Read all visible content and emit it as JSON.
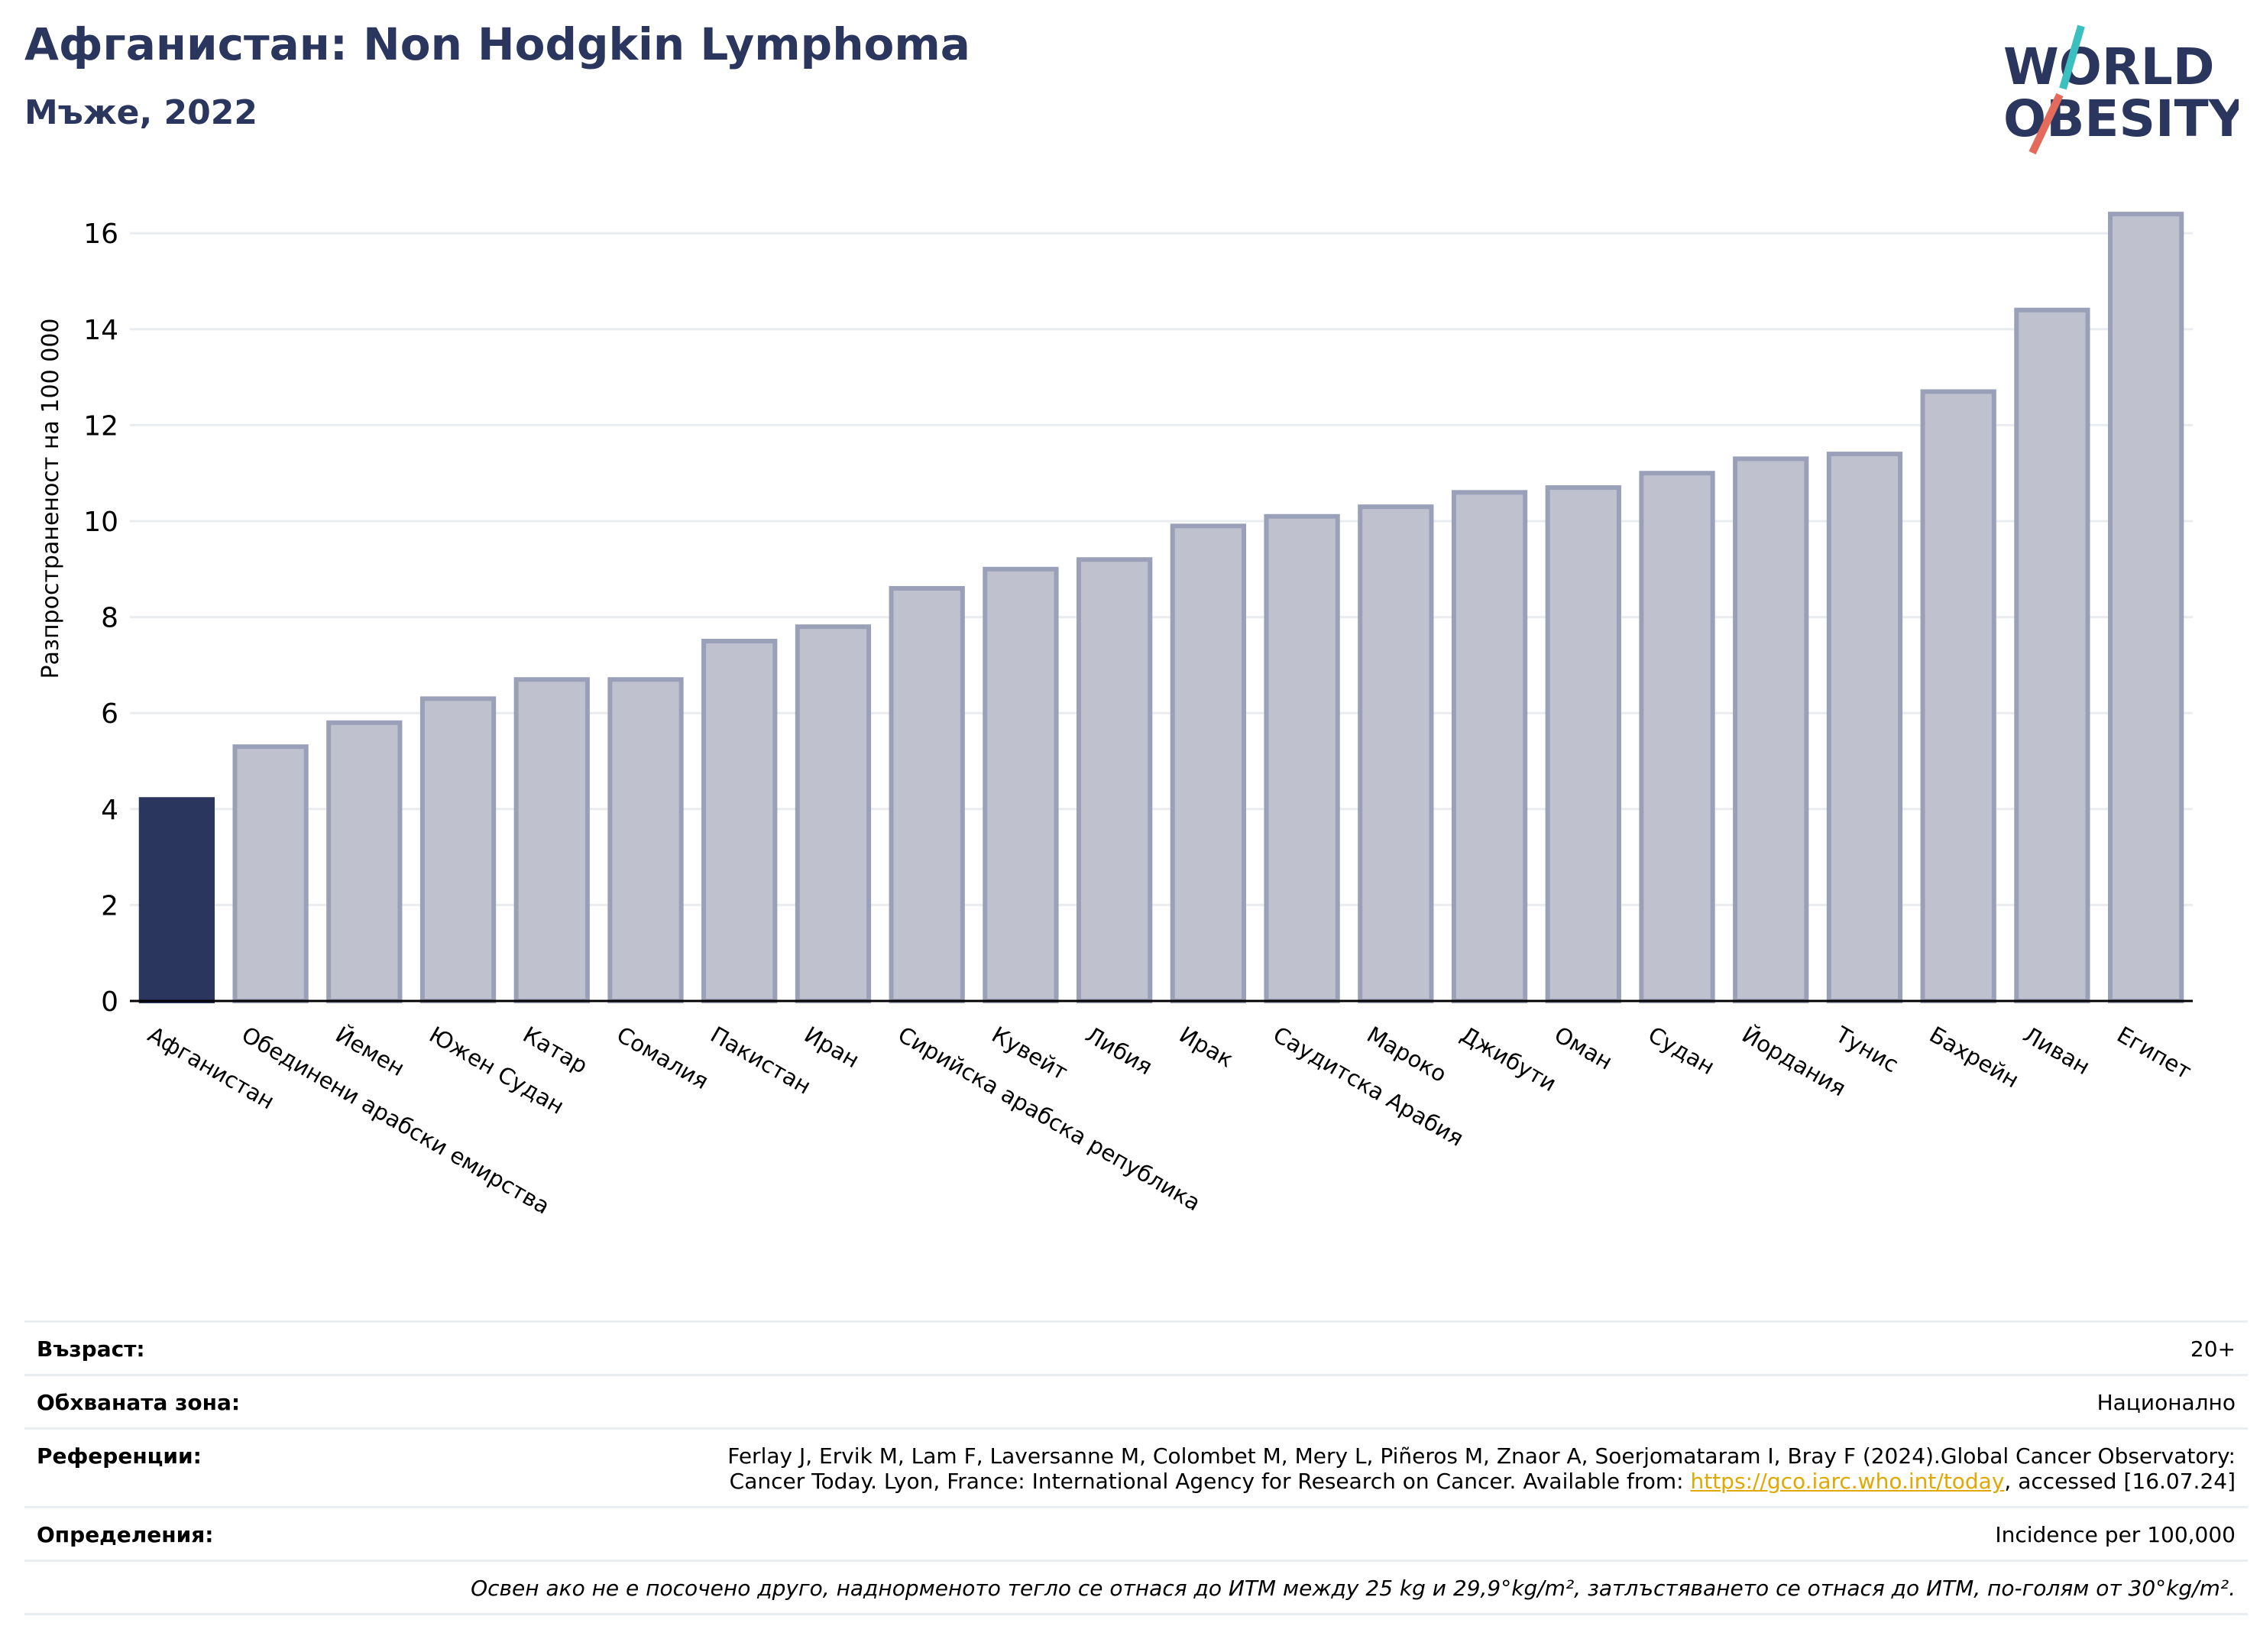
{
  "header": {
    "title": "Афганистан: Non Hodgkin Lymphoma",
    "subtitle": "Мъже, 2022"
  },
  "logo": {
    "line1": "WORLD",
    "line2": "OBESITY"
  },
  "colors": {
    "highlight": "#2b365f",
    "bar": "#bfc2ce",
    "bar_edge": "#9aa0b8",
    "grid": "#e9ecf0",
    "link": "#e0a800"
  },
  "chart_data": {
    "type": "bar",
    "ylabel": "Разпространеност  на 100 000",
    "ylim": [
      0,
      16.8
    ],
    "yticks": [
      0,
      2,
      4,
      6,
      8,
      10,
      12,
      14,
      16
    ],
    "grid": true,
    "highlight_index": 0,
    "categories": [
      "Афганистан",
      "Обединени арабски емирства",
      "Йемен",
      "Южен Судан",
      "Катар",
      "Сомалия",
      "Пакистан",
      "Иран",
      "Сирийска арабска република",
      "Кувейт",
      "Либия",
      "Ирак",
      "Саудитска Арабия",
      "Мароко",
      "Джибути",
      "Оман",
      "Судан",
      "Йордания",
      "Тунис",
      "Бахрейн",
      "Ливан",
      "Египет"
    ],
    "values": [
      4.2,
      5.3,
      5.8,
      6.3,
      6.7,
      6.7,
      7.5,
      7.8,
      8.6,
      9.0,
      9.2,
      9.9,
      10.1,
      10.3,
      10.6,
      10.7,
      11.0,
      11.3,
      11.4,
      12.7,
      14.4,
      16.4
    ]
  },
  "info": {
    "age_label": "Възраст:",
    "age_value": "20+",
    "area_label": "Обхваната зона:",
    "area_value": "Национално",
    "refs_label": "Референции:",
    "refs_line1": "Ferlay J, Ervik M, Lam F, Laversanne M, Colombet M, Mery L, Piñeros M, Znaor A, Soerjomataram I, Bray F (2024).Global Cancer Observatory:",
    "refs_line2_pre": "Cancer Today. Lyon, France: International Agency for Research on Cancer. Available from: ",
    "refs_link": "https://gco.iarc.who.int/today",
    "refs_line2_post": ", accessed [16.07.24]",
    "defs_label": "Определения:",
    "defs_value": "Incidence per 100,000",
    "note": "Освен ако не е посочено друго, наднорменото тегло се отнася до ИТМ между 25 kg и 29,9°kg/m², затлъстяването се отнася до ИТМ, по-голям от 30°kg/m²."
  }
}
